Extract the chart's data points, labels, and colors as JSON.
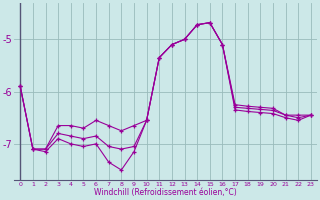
{
  "xlabel": "Windchill (Refroidissement éolien,°C)",
  "bg_color": "#cce8e8",
  "grid_color": "#99bbbb",
  "line_color": "#990099",
  "xlim": [
    -0.5,
    23.5
  ],
  "ylim": [
    -7.7,
    -4.3
  ],
  "yticks": [
    -7,
    -6,
    -5
  ],
  "xticks": [
    0,
    1,
    2,
    3,
    4,
    5,
    6,
    7,
    8,
    9,
    10,
    11,
    12,
    13,
    14,
    15,
    16,
    17,
    18,
    19,
    20,
    21,
    22,
    23
  ],
  "series1": [
    [
      0,
      -5.9
    ],
    [
      1,
      -7.1
    ],
    [
      2,
      -7.1
    ],
    [
      3,
      -6.65
    ],
    [
      4,
      -6.65
    ],
    [
      5,
      -6.7
    ],
    [
      6,
      -6.55
    ],
    [
      7,
      -6.65
    ],
    [
      8,
      -6.75
    ],
    [
      9,
      -6.65
    ],
    [
      10,
      -6.55
    ],
    [
      11,
      -5.35
    ],
    [
      12,
      -5.1
    ],
    [
      13,
      -5.0
    ],
    [
      14,
      -4.72
    ],
    [
      15,
      -4.68
    ],
    [
      16,
      -5.1
    ],
    [
      17,
      -6.35
    ],
    [
      18,
      -6.38
    ],
    [
      19,
      -6.4
    ],
    [
      20,
      -6.42
    ],
    [
      21,
      -6.5
    ],
    [
      22,
      -6.55
    ],
    [
      23,
      -6.45
    ]
  ],
  "series2": [
    [
      0,
      -5.9
    ],
    [
      1,
      -7.1
    ],
    [
      2,
      -7.1
    ],
    [
      3,
      -6.8
    ],
    [
      4,
      -6.85
    ],
    [
      5,
      -6.9
    ],
    [
      6,
      -6.85
    ],
    [
      7,
      -7.05
    ],
    [
      8,
      -7.1
    ],
    [
      9,
      -7.05
    ],
    [
      10,
      -6.55
    ],
    [
      11,
      -5.35
    ],
    [
      12,
      -5.1
    ],
    [
      13,
      -5.0
    ],
    [
      14,
      -4.72
    ],
    [
      15,
      -4.68
    ],
    [
      16,
      -5.1
    ],
    [
      17,
      -6.3
    ],
    [
      18,
      -6.32
    ],
    [
      19,
      -6.34
    ],
    [
      20,
      -6.36
    ],
    [
      21,
      -6.45
    ],
    [
      22,
      -6.5
    ],
    [
      23,
      -6.45
    ]
  ],
  "series3": [
    [
      0,
      -5.9
    ],
    [
      1,
      -7.1
    ],
    [
      2,
      -7.15
    ],
    [
      3,
      -6.9
    ],
    [
      4,
      -7.0
    ],
    [
      5,
      -7.05
    ],
    [
      6,
      -7.0
    ],
    [
      7,
      -7.35
    ],
    [
      8,
      -7.5
    ],
    [
      9,
      -7.15
    ],
    [
      10,
      -6.55
    ],
    [
      11,
      -5.35
    ],
    [
      12,
      -5.1
    ],
    [
      13,
      -5.0
    ],
    [
      14,
      -4.72
    ],
    [
      15,
      -4.68
    ],
    [
      16,
      -5.1
    ],
    [
      17,
      -6.25
    ],
    [
      18,
      -6.28
    ],
    [
      19,
      -6.3
    ],
    [
      20,
      -6.32
    ],
    [
      21,
      -6.45
    ],
    [
      22,
      -6.45
    ],
    [
      23,
      -6.45
    ]
  ]
}
